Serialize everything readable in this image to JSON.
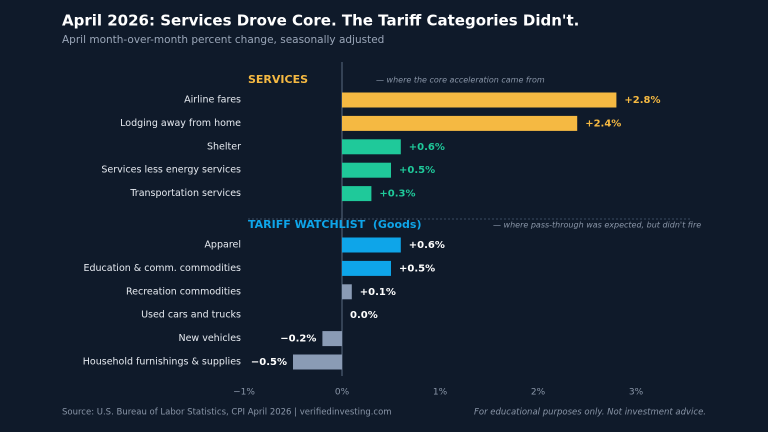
{
  "chart_data": {
    "type": "bar",
    "orientation": "horizontal",
    "title": "April 2026: Services Drove Core. The Tariff Categories Didn't.",
    "subtitle": "April month-over-month percent change, seasonally adjusted",
    "groups": [
      {
        "title": "SERVICES",
        "note": "— where the core acceleration came from",
        "color": "#f5b942",
        "categories": [
          "Airline fares",
          "Lodging away from home",
          "Shelter",
          "Services less energy services",
          "Transportation services"
        ],
        "values": [
          2.8,
          2.4,
          0.6,
          0.5,
          0.3
        ],
        "value_labels": [
          "+2.8%",
          "+2.4%",
          "+0.6%",
          "+0.5%",
          "+0.3%"
        ],
        "colors": [
          "#f5b942",
          "#f5b942",
          "#1fc99a",
          "#1fc99a",
          "#1fc99a"
        ],
        "label_colors": [
          "#f5b942",
          "#f5b942",
          "#1fc99a",
          "#1fc99a",
          "#1fc99a"
        ]
      },
      {
        "title": "TARIFF WATCHLIST  (Goods)",
        "note": "— where pass-through was expected, but didn't fire",
        "color": "#0ea5e9",
        "categories": [
          "Apparel",
          "Education & comm. commodities",
          "Recreation commodities",
          "Used cars and trucks",
          "New vehicles",
          "Household furnishings & supplies"
        ],
        "values": [
          0.6,
          0.5,
          0.1,
          0.0,
          -0.2,
          -0.5
        ],
        "value_labels": [
          "+0.6%",
          "+0.5%",
          "+0.1%",
          "0.0%",
          "−0.2%",
          "−0.5%"
        ],
        "colors": [
          "#0ea5e9",
          "#0ea5e9",
          "#8a9bb5",
          "#8a9bb5",
          "#8a9bb5",
          "#8a9bb5"
        ],
        "label_colors": [
          "#ffffff",
          "#ffffff",
          "#ffffff",
          "#ffffff",
          "#ffffff",
          "#ffffff"
        ]
      }
    ],
    "xlim": [
      -1,
      3
    ],
    "xticks": [
      {
        "value": -1,
        "label": "−1%"
      },
      {
        "value": 0,
        "label": "0%"
      },
      {
        "value": 1,
        "label": "1%"
      },
      {
        "value": 2,
        "label": "2%"
      },
      {
        "value": 3,
        "label": "3%"
      }
    ],
    "source": "Source: U.S. Bureau of Labor Statistics, CPI April 2026  |  verifiedinvesting.com",
    "disclaimer": "For educational purposes only. Not investment advice."
  }
}
